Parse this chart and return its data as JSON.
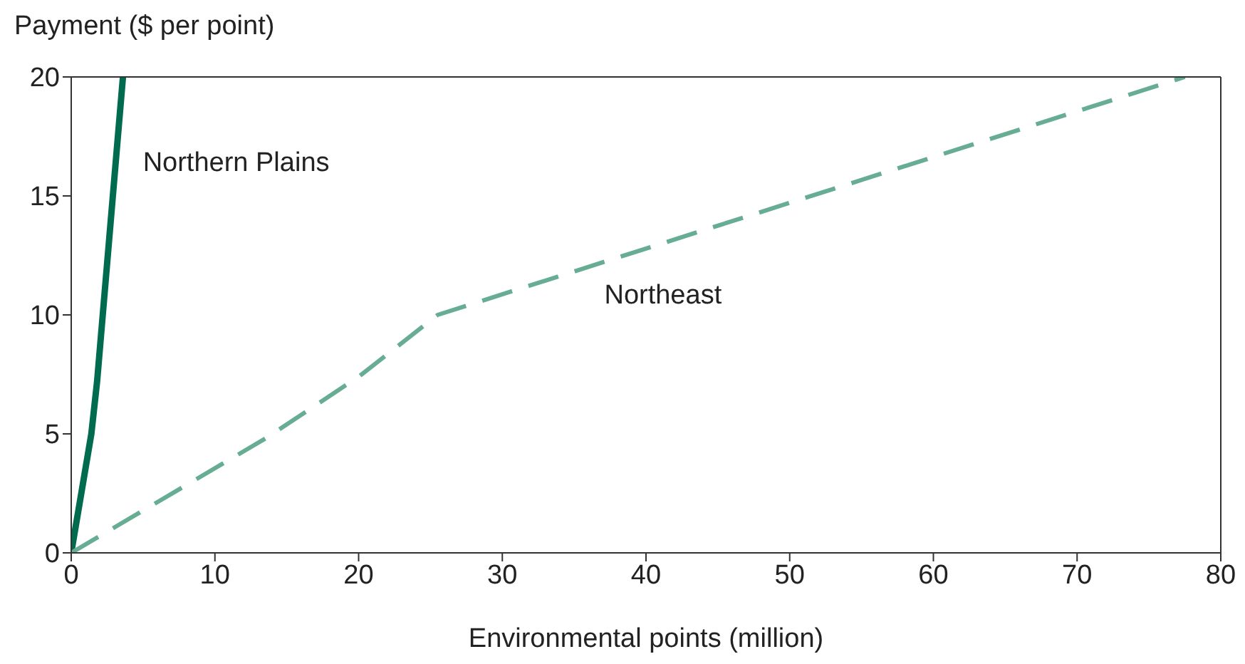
{
  "chart_data": {
    "type": "line",
    "xlabel": "Environmental points (million)",
    "ylabel": "Payment ($ per point)",
    "xlim": [
      0,
      80
    ],
    "xticks": [
      0,
      10,
      20,
      30,
      40,
      50,
      60,
      70,
      80
    ],
    "ylim": [
      0,
      20
    ],
    "yticks": [
      0,
      5,
      10,
      15,
      20
    ],
    "legend": false,
    "marker": "none",
    "series": [
      {
        "name": "Northern Plains",
        "color": "#006b4f",
        "line_style": "solid",
        "x": [
          0,
          1.4,
          1.8,
          3.6
        ],
        "values": [
          0,
          5,
          7.2,
          20
        ]
      },
      {
        "name": "Northeast",
        "color": "#66ad94",
        "line_style": "dashed",
        "x": [
          0,
          13.5,
          20,
          25.5,
          77.5
        ],
        "values": [
          0,
          4.8,
          7.4,
          10,
          20
        ]
      }
    ]
  }
}
